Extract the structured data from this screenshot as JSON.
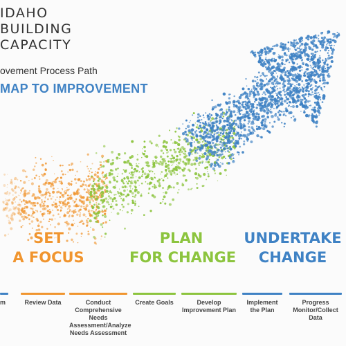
{
  "logo": {
    "line1": "IDAHO",
    "line2": "BUILDING",
    "line3": "CAPACITY"
  },
  "subtitle": "ovement Process Path",
  "headline": "MAP TO IMPROVEMENT",
  "colors": {
    "orange": "#f0952f",
    "green": "#8cc43e",
    "blue": "#3f82c4"
  },
  "phases": [
    {
      "line1": "SET",
      "line2": "A FOCUS",
      "color": "#f0952f"
    },
    {
      "line1": "PLAN",
      "line2": "FOR CHANGE",
      "color": "#8cc43e"
    },
    {
      "line1": "UNDERTAKE",
      "line2": "CHANGE",
      "color": "#3f82c4"
    }
  ],
  "steps": [
    {
      "label": "m",
      "color": "#3f82c4"
    },
    {
      "label": "Review Data",
      "color": "#f0952f"
    },
    {
      "label": "Conduct Comprehensive Needs Assessment/Analyze Needs Assessment",
      "color": "#f0952f"
    },
    {
      "label": "Create Goals",
      "color": "#8cc43e"
    },
    {
      "label": "Develop Improvement Plan",
      "color": "#8cc43e"
    },
    {
      "label": "Implement the Plan",
      "color": "#3f82c4"
    },
    {
      "label": "Progress Monitor/Collect Data",
      "color": "#3f82c4"
    }
  ]
}
